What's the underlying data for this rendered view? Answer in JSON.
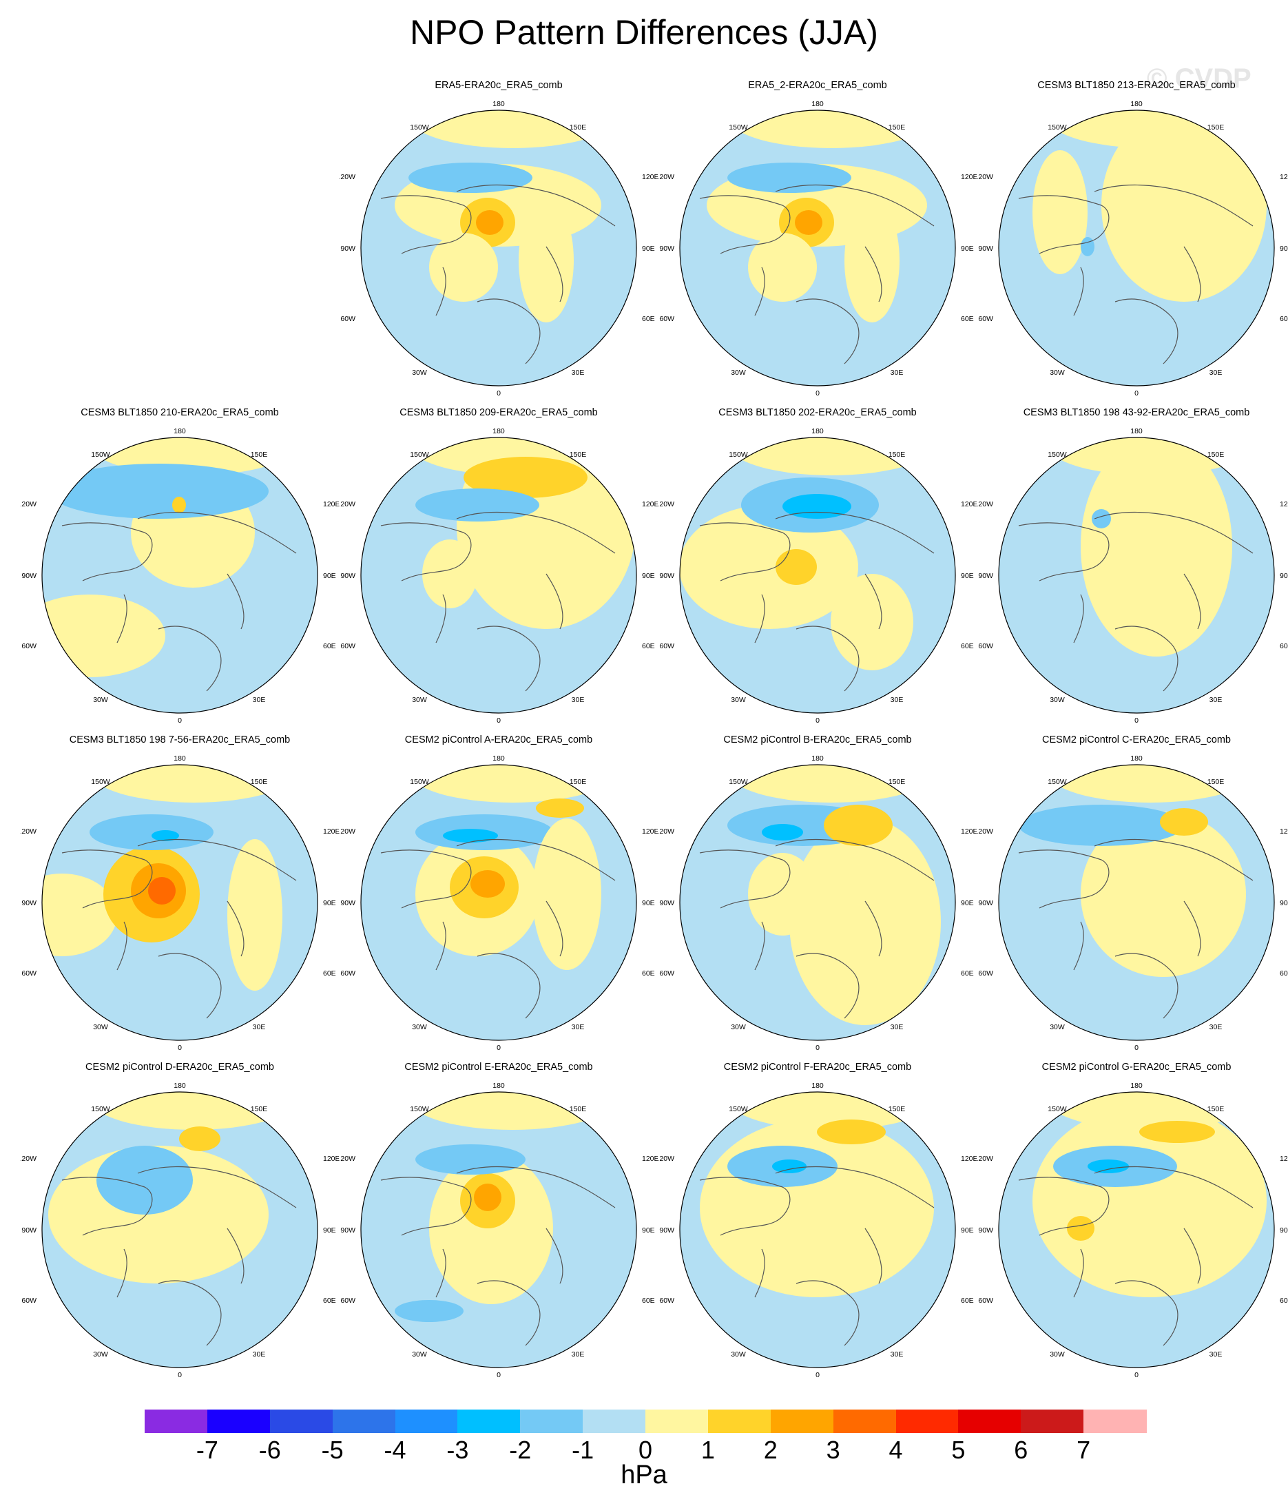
{
  "title": "NPO Pattern Differences (JJA)",
  "watermark": "© CVDP",
  "lon_labels": {
    "top": "180",
    "tl": "150W",
    "tr": "150E",
    "ul": "120W",
    "ur": "120E",
    "ml": "90W",
    "mr": "90E",
    "ll": "60W",
    "lr": "60E",
    "bl": "30W",
    "br": "30E",
    "bottom": "0"
  },
  "colors": {
    "ocean_neg1": "#b3dff3",
    "pos1": "#fff6a0",
    "pos2": "#ffd32a",
    "pos3": "#ffa500",
    "pos4": "#ff6a00",
    "pos5": "#ff2a00",
    "neg2": "#74c9f5",
    "neg3": "#00c0ff"
  },
  "panels": [
    {
      "title": "ERA5-ERA20c_ERA5_comb"
    },
    {
      "title": "ERA5_2-ERA20c_ERA5_comb"
    },
    {
      "title": "CESM3 BLT1850 213-ERA20c_ERA5_comb"
    },
    {
      "title": "CESM3 BLT1850 210-ERA20c_ERA5_comb"
    },
    {
      "title": "CESM3 BLT1850 209-ERA20c_ERA5_comb"
    },
    {
      "title": "CESM3 BLT1850 202-ERA20c_ERA5_comb"
    },
    {
      "title": "CESM3 BLT1850 198 43-92-ERA20c_ERA5_comb"
    },
    {
      "title": "CESM3 BLT1850 198 7-56-ERA20c_ERA5_comb"
    },
    {
      "title": "CESM2 piControl A-ERA20c_ERA5_comb"
    },
    {
      "title": "CESM2 piControl B-ERA20c_ERA5_comb"
    },
    {
      "title": "CESM2 piControl C-ERA20c_ERA5_comb"
    },
    {
      "title": "CESM2 piControl D-ERA20c_ERA5_comb"
    },
    {
      "title": "CESM2 piControl E-ERA20c_ERA5_comb"
    },
    {
      "title": "CESM2 piControl F-ERA20c_ERA5_comb"
    },
    {
      "title": "CESM2 piControl G-ERA20c_ERA5_comb"
    }
  ],
  "colorbar": {
    "units": "hPa",
    "colors": [
      "#8a2be2",
      "#1a00ff",
      "#2a4ae6",
      "#2d74ea",
      "#1e90ff",
      "#00bfff",
      "#74c9f5",
      "#b3dff3",
      "#fff6a0",
      "#ffd32a",
      "#ffa500",
      "#ff6a00",
      "#ff2a00",
      "#e60000",
      "#cc1a1a",
      "#ffb3b3"
    ],
    "tick_labels": [
      "-7",
      "-6",
      "-5",
      "-4",
      "-3",
      "-2",
      "-1",
      "0",
      "1",
      "2",
      "3",
      "4",
      "5",
      "6",
      "7"
    ]
  }
}
